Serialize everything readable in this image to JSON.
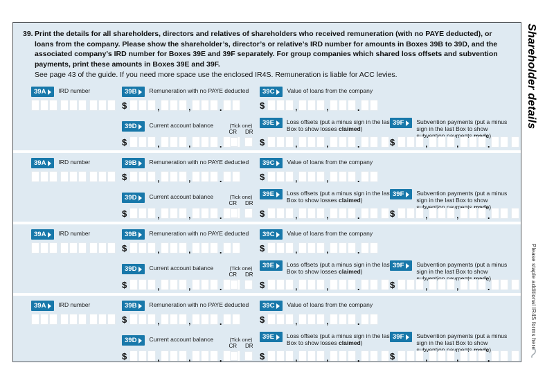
{
  "page": {
    "side_title": "Shareholder details",
    "staple_note": "Please staple additional IR4S forms here"
  },
  "instructions": {
    "number": "39.",
    "bold": "Print the details for all shareholders, directors and relatives of shareholders who received remuneration (with no PAYE deducted), or loans from the company. Please show the shareholder’s, director’s or relative’s IRD number for amounts in Boxes 39B to 39D, and the associated company’s IRD number for Boxes 39E and 39F separately. For group companies which shared loss offsets and subvention payments, print these amounts in Boxes 39E and 39F.",
    "note": "See page 43 of the guide. If you need more space use the enclosed IR4S. Remuneration is liable for ACC levies."
  },
  "fields": {
    "a": {
      "code": "39A",
      "label": "IRD number"
    },
    "b": {
      "code": "39B",
      "label": "Remuneration with no PAYE deducted"
    },
    "c": {
      "code": "39C",
      "label": "Value of loans from the company"
    },
    "d": {
      "code": "39D",
      "label": "Current account balance"
    },
    "e": {
      "code": "39E",
      "label_pre": "Loss offsets (put a minus sign in the last Box to show losses ",
      "label_bold": "claimed",
      "label_post": ")"
    },
    "f": {
      "code": "39F",
      "label_pre": "Subvention payments (put a minus sign in the last Box to show subvention payments ",
      "label_bold": "made",
      "label_post": ")"
    },
    "tick": {
      "caption": "(Tick one)",
      "cr": "CR",
      "dr": "DR"
    },
    "currency": "$",
    "comma": ",",
    "point": "."
  },
  "blocks_count": 4,
  "colors": {
    "accent_blue": "#1878aa",
    "panel_blue": "#dfeaf2"
  }
}
